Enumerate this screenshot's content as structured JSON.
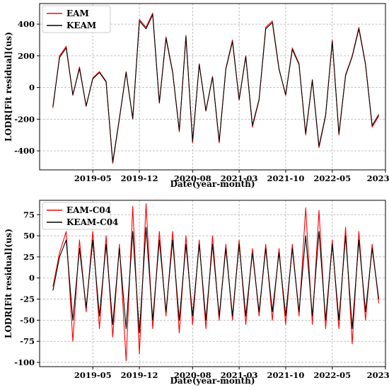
{
  "chart_data": [
    {
      "type": "line",
      "xlabel": "Date(year-month)",
      "ylabel": "LODR[Fit residual](us)",
      "x_range": [
        "2018-09",
        "2023-01"
      ],
      "ylim": [
        -520,
        530
      ],
      "xticks": [
        "2019-05",
        "2019-12",
        "2020-08",
        "2021-03",
        "2021-10",
        "2022-05",
        "2023-01"
      ],
      "yticks": [
        -400,
        -200,
        0,
        200,
        400
      ],
      "grid": true,
      "legend": "top-left",
      "series": [
        {
          "name": "EAM",
          "color": "#ff0000",
          "x": [
            "2018-11",
            "2018-12",
            "2019-01",
            "2019-02",
            "2019-03",
            "2019-04",
            "2019-05",
            "2019-06",
            "2019-07",
            "2019-08",
            "2019-09",
            "2019-10",
            "2019-11",
            "2019-12",
            "2020-01",
            "2020-02",
            "2020-03",
            "2020-04",
            "2020-05",
            "2020-06",
            "2020-07",
            "2020-08",
            "2020-09",
            "2020-10",
            "2020-11",
            "2020-12",
            "2021-01",
            "2021-02",
            "2021-03",
            "2021-04",
            "2021-05",
            "2021-06",
            "2021-07",
            "2021-08",
            "2021-09",
            "2021-10",
            "2021-11",
            "2021-12",
            "2022-01",
            "2022-02",
            "2022-03",
            "2022-04",
            "2022-05",
            "2022-06",
            "2022-07",
            "2022-08",
            "2022-09",
            "2022-10",
            "2022-11",
            "2022-12"
          ],
          "values": [
            -130,
            200,
            260,
            -50,
            130,
            -120,
            60,
            100,
            40,
            -480,
            -200,
            100,
            -200,
            430,
            380,
            470,
            -100,
            320,
            100,
            -280,
            330,
            -350,
            150,
            -150,
            70,
            -350,
            120,
            300,
            -80,
            200,
            -250,
            -80,
            380,
            420,
            120,
            -50,
            250,
            150,
            -300,
            50,
            -380,
            -180,
            300,
            -300,
            80,
            200,
            380,
            150,
            -250,
            -180
          ]
        },
        {
          "name": "KEAM",
          "color": "#000000",
          "x": [
            "2018-11",
            "2018-12",
            "2019-01",
            "2019-02",
            "2019-03",
            "2019-04",
            "2019-05",
            "2019-06",
            "2019-07",
            "2019-08",
            "2019-09",
            "2019-10",
            "2019-11",
            "2019-12",
            "2020-01",
            "2020-02",
            "2020-03",
            "2020-04",
            "2020-05",
            "2020-06",
            "2020-07",
            "2020-08",
            "2020-09",
            "2020-10",
            "2020-11",
            "2020-12",
            "2021-01",
            "2021-02",
            "2021-03",
            "2021-04",
            "2021-05",
            "2021-06",
            "2021-07",
            "2021-08",
            "2021-09",
            "2021-10",
            "2021-11",
            "2021-12",
            "2022-01",
            "2022-02",
            "2022-03",
            "2022-04",
            "2022-05",
            "2022-06",
            "2022-07",
            "2022-08",
            "2022-09",
            "2022-10",
            "2022-11",
            "2022-12"
          ],
          "values": [
            -120,
            190,
            250,
            -45,
            120,
            -115,
            55,
            95,
            35,
            -470,
            -195,
            95,
            -195,
            420,
            370,
            460,
            -95,
            310,
            95,
            -270,
            320,
            -340,
            145,
            -145,
            65,
            -340,
            115,
            290,
            -75,
            195,
            -240,
            -75,
            370,
            410,
            115,
            -45,
            240,
            145,
            -290,
            45,
            -370,
            -175,
            290,
            -290,
            75,
            195,
            370,
            145,
            -240,
            -170
          ]
        }
      ]
    },
    {
      "type": "line",
      "xlabel": "Date(year-month)",
      "ylabel": "LODR[Fit residual](us)",
      "x_range": [
        "2018-09",
        "2023-01"
      ],
      "ylim": [
        -105,
        92
      ],
      "xticks": [
        "2019-05",
        "2019-12",
        "2020-08",
        "2021-03",
        "2021-10",
        "2022-05",
        "2023-01"
      ],
      "yticks": [
        -100,
        -75,
        -50,
        -25,
        0,
        25,
        50,
        75
      ],
      "grid": true,
      "legend": "top-left",
      "series": [
        {
          "name": "EAM-C04",
          "color": "#ff0000",
          "x": [
            "2018-11",
            "2018-12",
            "2019-01",
            "2019-02",
            "2019-03",
            "2019-04",
            "2019-05",
            "2019-06",
            "2019-07",
            "2019-08",
            "2019-09",
            "2019-10",
            "2019-11",
            "2019-12",
            "2020-01",
            "2020-02",
            "2020-03",
            "2020-04",
            "2020-05",
            "2020-06",
            "2020-07",
            "2020-08",
            "2020-09",
            "2020-10",
            "2020-11",
            "2020-12",
            "2021-01",
            "2021-02",
            "2021-03",
            "2021-04",
            "2021-05",
            "2021-06",
            "2021-07",
            "2021-08",
            "2021-09",
            "2021-10",
            "2021-11",
            "2021-12",
            "2022-01",
            "2022-02",
            "2022-03",
            "2022-04",
            "2022-05",
            "2022-06",
            "2022-07",
            "2022-08",
            "2022-09",
            "2022-10",
            "2022-11",
            "2022-12"
          ],
          "values": [
            -10,
            30,
            55,
            -75,
            45,
            -40,
            55,
            -60,
            50,
            -70,
            40,
            -98,
            85,
            -90,
            88,
            -60,
            55,
            -45,
            55,
            -65,
            50,
            -55,
            45,
            -60,
            50,
            -50,
            40,
            -50,
            45,
            -55,
            35,
            -45,
            40,
            -50,
            35,
            -55,
            40,
            -45,
            83,
            -55,
            80,
            -60,
            45,
            -60,
            60,
            -78,
            55,
            -50,
            40,
            -30
          ]
        },
        {
          "name": "KEAM-C04",
          "color": "#000000",
          "x": [
            "2018-11",
            "2018-12",
            "2019-01",
            "2019-02",
            "2019-03",
            "2019-04",
            "2019-05",
            "2019-06",
            "2019-07",
            "2019-08",
            "2019-09",
            "2019-10",
            "2019-11",
            "2019-12",
            "2020-01",
            "2020-02",
            "2020-03",
            "2020-04",
            "2020-05",
            "2020-06",
            "2020-07",
            "2020-08",
            "2020-09",
            "2020-10",
            "2020-11",
            "2020-12",
            "2021-01",
            "2021-02",
            "2021-03",
            "2021-04",
            "2021-05",
            "2021-06",
            "2021-07",
            "2021-08",
            "2021-09",
            "2021-10",
            "2021-11",
            "2021-12",
            "2022-01",
            "2022-02",
            "2022-03",
            "2022-04",
            "2022-05",
            "2022-06",
            "2022-07",
            "2022-08",
            "2022-09",
            "2022-10",
            "2022-11",
            "2022-12"
          ],
          "values": [
            -15,
            25,
            45,
            -50,
            35,
            -35,
            45,
            -45,
            40,
            -55,
            35,
            -60,
            55,
            -65,
            60,
            -50,
            45,
            -40,
            45,
            -50,
            40,
            -45,
            40,
            -50,
            40,
            -45,
            35,
            -45,
            40,
            -45,
            30,
            -40,
            35,
            -40,
            30,
            -45,
            35,
            -40,
            50,
            -45,
            55,
            -50,
            40,
            -50,
            50,
            -60,
            45,
            -40,
            35,
            -25
          ]
        }
      ]
    }
  ]
}
